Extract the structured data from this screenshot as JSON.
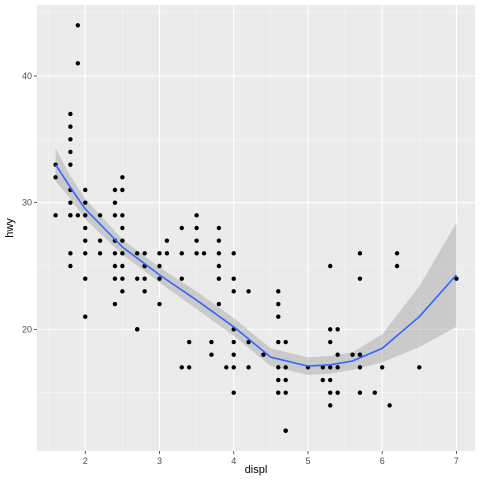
{
  "colors": {
    "panel": "#ebebeb",
    "grid_major": "#ffffff",
    "grid_minor": "#f5f5f5",
    "points": "#000000",
    "smooth_line": "#3366ff",
    "ribbon": "#999999"
  },
  "chart_data": {
    "type": "scatter",
    "title": "",
    "xlabel": "displ",
    "ylabel": "hwy",
    "xlim": [
      1.35,
      7.25
    ],
    "ylim": [
      10.4,
      45.6
    ],
    "xticks": [
      2,
      3,
      4,
      5,
      6,
      7
    ],
    "yticks": [
      20,
      30,
      40
    ],
    "xtick_labels": [
      "2",
      "3",
      "4",
      "5",
      "6",
      "7"
    ],
    "ytick_labels": [
      "20",
      "30",
      "40"
    ],
    "grid": true,
    "legend": "none",
    "points": [
      [
        1.6,
        33
      ],
      [
        1.6,
        32
      ],
      [
        1.6,
        29
      ],
      [
        1.8,
        29
      ],
      [
        1.8,
        29
      ],
      [
        1.8,
        31
      ],
      [
        1.8,
        36
      ],
      [
        1.8,
        37
      ],
      [
        1.8,
        35
      ],
      [
        1.8,
        34
      ],
      [
        1.8,
        33
      ],
      [
        1.8,
        30
      ],
      [
        1.8,
        26
      ],
      [
        1.8,
        25
      ],
      [
        1.9,
        44
      ],
      [
        1.9,
        41
      ],
      [
        1.9,
        29
      ],
      [
        2.0,
        31
      ],
      [
        2.0,
        30
      ],
      [
        2.0,
        29
      ],
      [
        2.0,
        28
      ],
      [
        2.0,
        27
      ],
      [
        2.0,
        26
      ],
      [
        2.0,
        24
      ],
      [
        2.0,
        21
      ],
      [
        2.2,
        29
      ],
      [
        2.2,
        27
      ],
      [
        2.2,
        26
      ],
      [
        2.4,
        31
      ],
      [
        2.4,
        30
      ],
      [
        2.4,
        29
      ],
      [
        2.4,
        27
      ],
      [
        2.4,
        26
      ],
      [
        2.4,
        25
      ],
      [
        2.4,
        24
      ],
      [
        2.4,
        22
      ],
      [
        2.5,
        32
      ],
      [
        2.5,
        31
      ],
      [
        2.5,
        29
      ],
      [
        2.5,
        28
      ],
      [
        2.5,
        27
      ],
      [
        2.5,
        26
      ],
      [
        2.5,
        25
      ],
      [
        2.5,
        24
      ],
      [
        2.5,
        23
      ],
      [
        2.7,
        26
      ],
      [
        2.7,
        24
      ],
      [
        2.7,
        20
      ],
      [
        2.7,
        20
      ],
      [
        2.8,
        26
      ],
      [
        2.8,
        25
      ],
      [
        2.8,
        24
      ],
      [
        2.8,
        23
      ],
      [
        3.0,
        26
      ],
      [
        3.0,
        25
      ],
      [
        3.0,
        24
      ],
      [
        3.0,
        22
      ],
      [
        3.1,
        27
      ],
      [
        3.1,
        26
      ],
      [
        3.3,
        28
      ],
      [
        3.3,
        26
      ],
      [
        3.3,
        24
      ],
      [
        3.3,
        17
      ],
      [
        3.4,
        19
      ],
      [
        3.4,
        17
      ],
      [
        3.5,
        29
      ],
      [
        3.5,
        28
      ],
      [
        3.5,
        27
      ],
      [
        3.5,
        26
      ],
      [
        3.6,
        26
      ],
      [
        3.7,
        19
      ],
      [
        3.7,
        18
      ],
      [
        3.8,
        28
      ],
      [
        3.8,
        27
      ],
      [
        3.8,
        26
      ],
      [
        3.8,
        25
      ],
      [
        3.8,
        24
      ],
      [
        3.8,
        22
      ],
      [
        3.9,
        17
      ],
      [
        4.0,
        26
      ],
      [
        4.0,
        24
      ],
      [
        4.0,
        23
      ],
      [
        4.0,
        20
      ],
      [
        4.0,
        19
      ],
      [
        4.0,
        18
      ],
      [
        4.0,
        17
      ],
      [
        4.0,
        15
      ],
      [
        4.2,
        23
      ],
      [
        4.2,
        19
      ],
      [
        4.2,
        17
      ],
      [
        4.4,
        18
      ],
      [
        4.6,
        23
      ],
      [
        4.6,
        22
      ],
      [
        4.6,
        21
      ],
      [
        4.6,
        19
      ],
      [
        4.6,
        17
      ],
      [
        4.6,
        16
      ],
      [
        4.6,
        15
      ],
      [
        4.7,
        19
      ],
      [
        4.7,
        17
      ],
      [
        4.7,
        16
      ],
      [
        4.7,
        15
      ],
      [
        4.7,
        12
      ],
      [
        4.7,
        12
      ],
      [
        5.0,
        17
      ],
      [
        5.2,
        17
      ],
      [
        5.2,
        16
      ],
      [
        5.3,
        25
      ],
      [
        5.3,
        20
      ],
      [
        5.3,
        19
      ],
      [
        5.3,
        17
      ],
      [
        5.3,
        16
      ],
      [
        5.3,
        15
      ],
      [
        5.3,
        14
      ],
      [
        5.4,
        20
      ],
      [
        5.4,
        18
      ],
      [
        5.4,
        17
      ],
      [
        5.4,
        15
      ],
      [
        5.6,
        18
      ],
      [
        5.7,
        26
      ],
      [
        5.7,
        24
      ],
      [
        5.7,
        18
      ],
      [
        5.7,
        17
      ],
      [
        5.7,
        15
      ],
      [
        5.9,
        15
      ],
      [
        6.0,
        17
      ],
      [
        6.1,
        14
      ],
      [
        6.2,
        26
      ],
      [
        6.2,
        25
      ],
      [
        6.5,
        17
      ],
      [
        7.0,
        24
      ]
    ],
    "smooth": {
      "method": "loess",
      "x": [
        1.6,
        1.8,
        2.0,
        2.5,
        3.0,
        3.5,
        4.0,
        4.5,
        5.0,
        5.3,
        5.6,
        6.0,
        6.5,
        7.0
      ],
      "y": [
        33.0,
        31.2,
        29.5,
        26.5,
        24.3,
        22.3,
        20.2,
        17.8,
        17.1,
        17.2,
        17.5,
        18.5,
        21.0,
        24.3
      ],
      "lower": [
        31.7,
        30.3,
        28.7,
        25.9,
        23.7,
        21.6,
        19.5,
        17.1,
        16.4,
        16.5,
        16.8,
        17.4,
        18.6,
        20.2
      ],
      "upper": [
        34.3,
        32.1,
        30.3,
        27.1,
        24.9,
        23.0,
        20.9,
        18.5,
        17.8,
        17.9,
        18.2,
        19.6,
        23.4,
        28.4
      ]
    }
  }
}
